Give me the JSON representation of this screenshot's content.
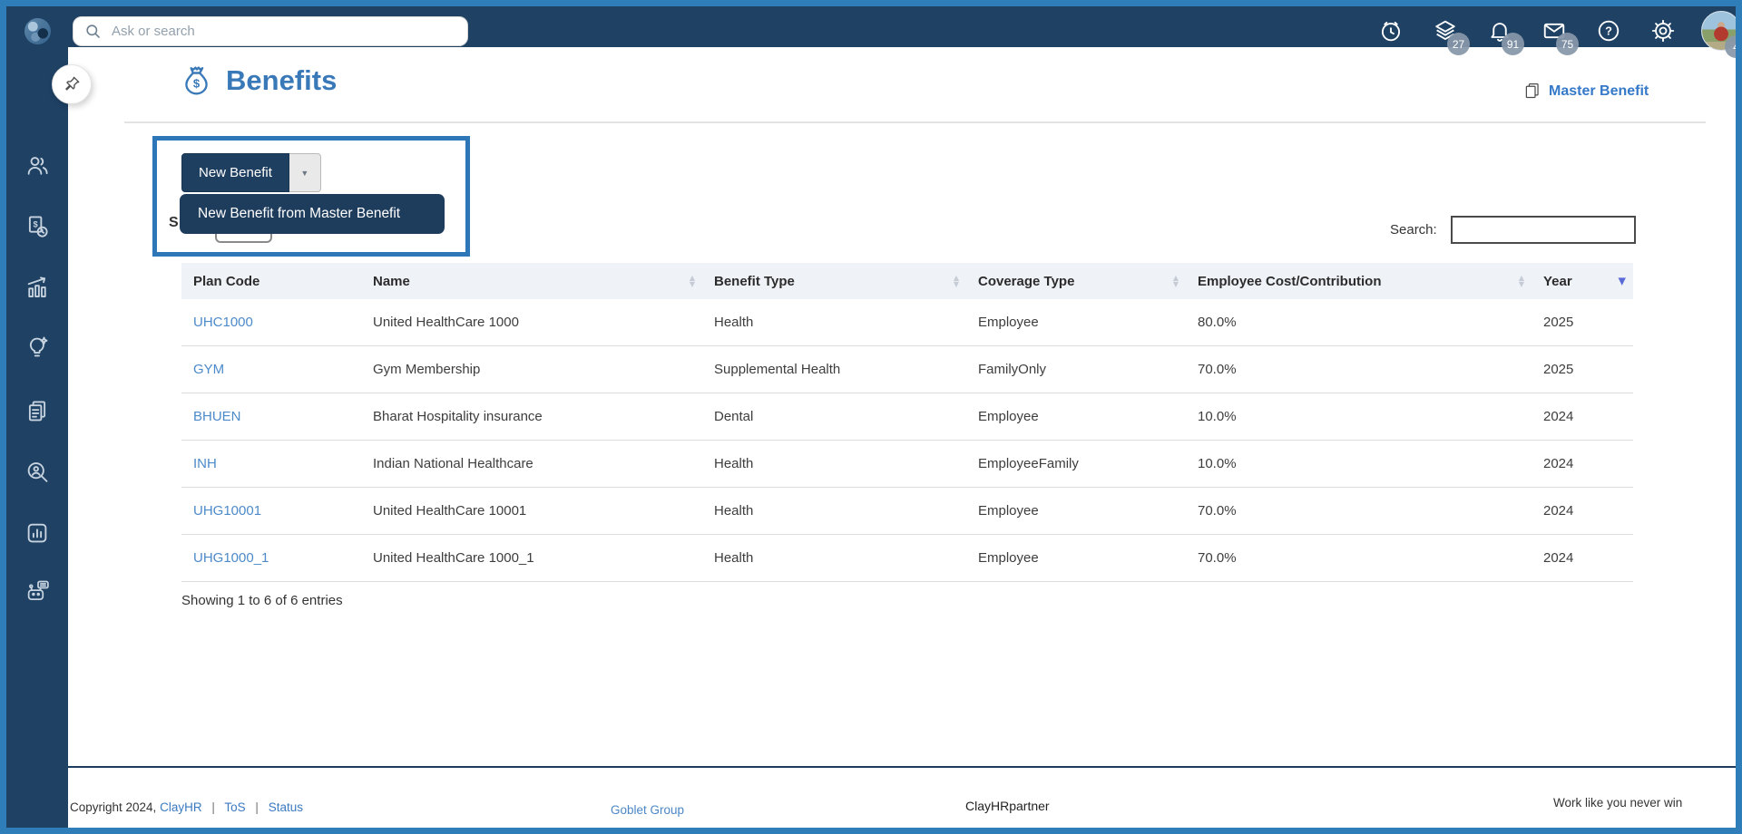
{
  "colors": {
    "frame": "#2f7db9",
    "navbar": "#1e4164",
    "annotation": "#2d76b8",
    "menu": "#1e3c5c",
    "title_blue": "#3a79b8",
    "link_blue": "#3b7ac0",
    "plan_link": "#4d8ac9",
    "sort_active": "#5a6bd8",
    "header_bg": "#eff3f7"
  },
  "navbar": {
    "search_placeholder": "Ask or search",
    "icons": [
      "clock-icon",
      "layers-icon",
      "bell-icon",
      "mail-icon",
      "help-icon",
      "gear-icon",
      "avatar"
    ],
    "badges": {
      "stack": "27",
      "bell": "91",
      "mail": "75",
      "avatar": "4"
    }
  },
  "sidebar": {
    "items": [
      "users-icon",
      "payroll-clock-icon",
      "performance-chart-icon",
      "lightbulb-icon",
      "documents-icon",
      "people-search-icon",
      "report-box-icon",
      "bot-chat-icon"
    ]
  },
  "page": {
    "title": "Benefits",
    "title_icon": "money-bag-icon",
    "master_benefit_label": "Master Benefit"
  },
  "toolbar": {
    "new_benefit_label": "New Benefit",
    "menu_item_label": "New Benefit from Master Benefit",
    "show_entries_fragment": "S"
  },
  "table": {
    "search_label": "Search:",
    "search_value": "",
    "columns": [
      {
        "label": "Plan Code",
        "sort": "none"
      },
      {
        "label": "Name",
        "sort": "both"
      },
      {
        "label": "Benefit Type",
        "sort": "both"
      },
      {
        "label": "Coverage Type",
        "sort": "both"
      },
      {
        "label": "Employee Cost/Contribution",
        "sort": "both"
      },
      {
        "label": "Year",
        "sort": "desc"
      }
    ],
    "rows": [
      {
        "plan_code": "UHC1000",
        "name": "United HealthCare 1000",
        "benefit_type": "Health",
        "coverage_type": "Employee",
        "employee_cost": "80.0%",
        "year": "2025"
      },
      {
        "plan_code": "GYM",
        "name": "Gym Membership",
        "benefit_type": "Supplemental Health",
        "coverage_type": "FamilyOnly",
        "employee_cost": "70.0%",
        "year": "2025"
      },
      {
        "plan_code": "BHUEN",
        "name": "Bharat Hospitality insurance",
        "benefit_type": "Dental",
        "coverage_type": "Employee",
        "employee_cost": "10.0%",
        "year": "2024"
      },
      {
        "plan_code": "INH",
        "name": "Indian National Healthcare",
        "benefit_type": "Health",
        "coverage_type": "EmployeeFamily",
        "employee_cost": "10.0%",
        "year": "2024"
      },
      {
        "plan_code": "UHG10001",
        "name": "United HealthCare 10001",
        "benefit_type": "Health",
        "coverage_type": "Employee",
        "employee_cost": "70.0%",
        "year": "2024"
      },
      {
        "plan_code": "UHG1000_1",
        "name": "United HealthCare 1000_1",
        "benefit_type": "Health",
        "coverage_type": "Employee",
        "employee_cost": "70.0%",
        "year": "2024"
      }
    ],
    "summary": "Showing 1 to 6 of 6 entries"
  },
  "footer": {
    "copyright_prefix": "Copyright 2024,",
    "clayhr_label": "ClayHR",
    "separator": "|",
    "tos_label": "ToS",
    "status_label": "Status",
    "group_label": "Goblet Group",
    "partner_label": "ClayHRpartner",
    "slogan": "Work like you never win"
  }
}
